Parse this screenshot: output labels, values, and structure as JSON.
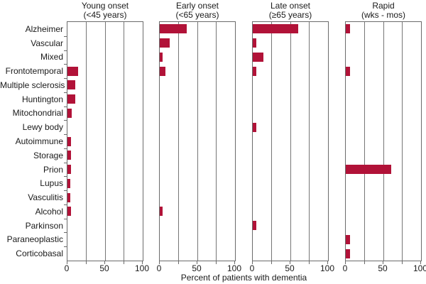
{
  "chart_data": {
    "type": "bar",
    "orientation": "horizontal",
    "xlabel": "Percent of patients with dementia",
    "xlim": [
      0,
      100
    ],
    "xtick_values": [
      0,
      50,
      100
    ],
    "xtick_labels": [
      "0",
      "50",
      "100"
    ],
    "gridline_values": [
      25,
      50,
      75
    ],
    "grid": true,
    "legend": false,
    "bar_color": "#b11238",
    "frame_color": "#6b6b6b",
    "categories": [
      "Alzheimer",
      "Vascular",
      "Mixed",
      "Frontotemporal",
      "Multiple sclerosis",
      "Huntington",
      "Mitochondrial",
      "Lewy body",
      "Autoimmune",
      "Storage",
      "Prion",
      "Lupus",
      "Vasculitis",
      "Alcohol",
      "Parkinson",
      "Paraneoplastic",
      "Corticobasal"
    ],
    "panels": [
      {
        "title": "Young onset",
        "subtitle": "(<45 years)",
        "values": [
          0,
          0,
          0,
          14,
          10,
          10,
          6,
          0,
          5,
          5,
          5,
          4,
          4,
          5,
          0,
          0,
          0
        ]
      },
      {
        "title": "Early onset",
        "subtitle": "(<65 years)",
        "values": [
          36,
          13,
          4,
          8,
          0,
          0,
          0,
          0,
          0,
          0,
          0,
          0,
          0,
          4,
          0,
          0,
          0
        ]
      },
      {
        "title": "Late onset",
        "subtitle": "(≥65 years)",
        "values": [
          60,
          5,
          14,
          5,
          0,
          0,
          0,
          5,
          0,
          0,
          0,
          0,
          0,
          0,
          5,
          0,
          0
        ]
      },
      {
        "title": "Rapid",
        "subtitle": "(wks - mos)",
        "values": [
          6,
          0,
          0,
          6,
          0,
          0,
          0,
          0,
          0,
          0,
          60,
          0,
          0,
          0,
          0,
          6,
          6
        ]
      }
    ]
  }
}
